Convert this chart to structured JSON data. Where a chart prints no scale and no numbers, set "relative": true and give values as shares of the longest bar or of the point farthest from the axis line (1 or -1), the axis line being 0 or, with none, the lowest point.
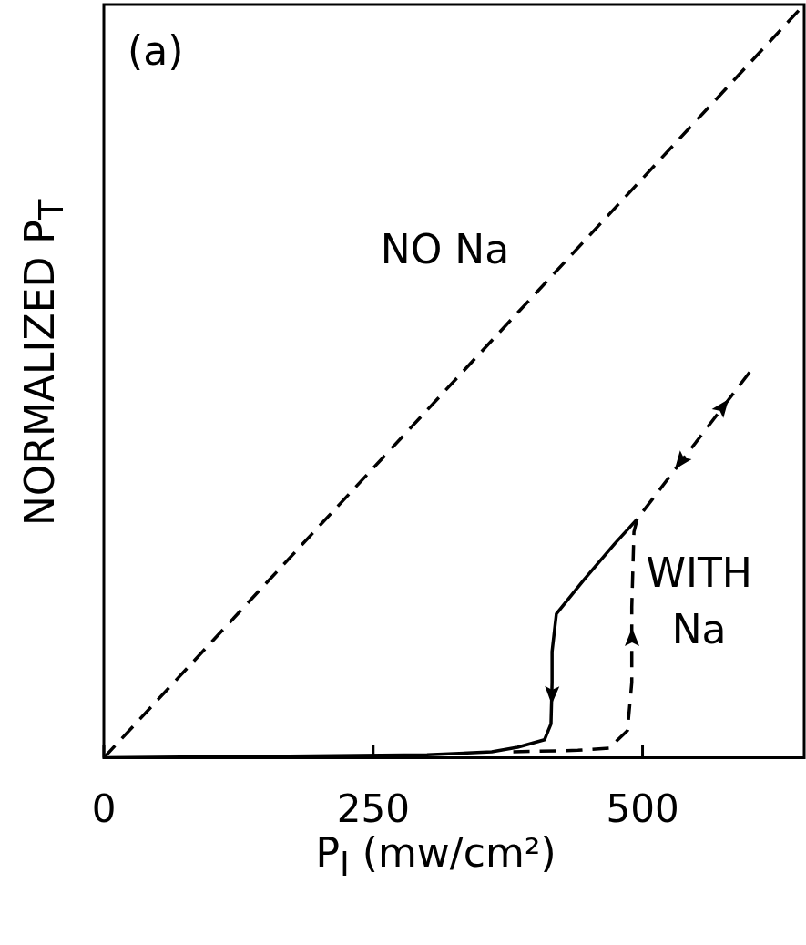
{
  "chart_data": {
    "type": "line",
    "relative": true,
    "xlabel": "P$_{I}$ (mw/cm²)",
    "ylabel": "NORMALIZED P$_{T}$",
    "annotations": [
      "(a)"
    ],
    "xlim": [
      0,
      650
    ],
    "xticks": [
      0,
      250,
      500
    ],
    "grid": false,
    "legend": false,
    "series": [
      {
        "name": "NO Na",
        "color": "#000000",
        "line_style": "dashed",
        "x": [
          0,
          650
        ],
        "values": [
          0,
          1
        ]
      },
      {
        "name": "WITH Na",
        "color": "#000000",
        "line_style": "solid",
        "x": [
          0,
          150,
          300,
          360,
          384,
          409,
          415,
          416,
          416,
          420,
          446,
          474,
          495
        ],
        "values": [
          0,
          0.002,
          0.004,
          0.008,
          0.014,
          0.024,
          0.045,
          0.1,
          0.141,
          0.191,
          0.237,
          0.284,
          0.317
        ]
      },
      {
        "color": "#000000",
        "line_style": "dashed",
        "x": [
          380,
          440,
          469,
          486,
          490,
          490,
          492,
          495,
          601
        ],
        "values": [
          0.008,
          0.01,
          0.013,
          0.036,
          0.1,
          0.2,
          0.3,
          0.317,
          0.515
        ]
      }
    ]
  }
}
